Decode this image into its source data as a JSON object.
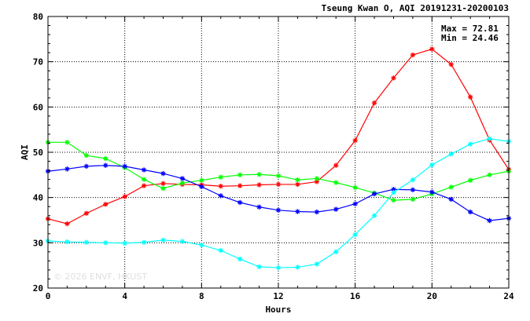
{
  "chart_data": {
    "type": "line",
    "title": "Tseung Kwan O, AQI 20191231-20200103",
    "xlabel": "Hours",
    "ylabel": "AQI",
    "xlim": [
      0,
      24
    ],
    "ylim": [
      20,
      80
    ],
    "xticks": [
      0,
      4,
      8,
      12,
      16,
      20,
      24
    ],
    "yticks": [
      20,
      30,
      40,
      50,
      60,
      70,
      80
    ],
    "grid": true,
    "stats": {
      "max": "Max = 72.81",
      "min": "Min = 24.46"
    },
    "watermark": "© 2026 ENVF, HKUST",
    "x": [
      0,
      1,
      2,
      3,
      4,
      5,
      6,
      7,
      8,
      9,
      10,
      11,
      12,
      13,
      14,
      15,
      16,
      17,
      18,
      19,
      20,
      21,
      22,
      23,
      24
    ],
    "series": [
      {
        "color": "#ff0000",
        "values": [
          35.3,
          34.2,
          36.5,
          38.5,
          40.2,
          42.6,
          43.1,
          42.9,
          42.8,
          42.5,
          42.6,
          42.8,
          42.9,
          42.9,
          43.5,
          47.1,
          52.6,
          60.9,
          66.4,
          71.5,
          72.8,
          69.4,
          62.2,
          52.7,
          46.2
        ]
      },
      {
        "color": "#00ff00",
        "values": [
          52.2,
          52.2,
          49.3,
          48.6,
          46.6,
          44.0,
          42.0,
          43.2,
          43.8,
          44.5,
          45.0,
          45.1,
          44.8,
          43.9,
          44.2,
          43.3,
          42.2,
          41.0,
          39.4,
          39.6,
          40.8,
          42.3,
          43.8,
          45.0,
          45.8
        ]
      },
      {
        "color": "#0000ff",
        "values": [
          45.8,
          46.3,
          46.9,
          47.1,
          46.9,
          46.1,
          45.3,
          44.2,
          42.4,
          40.4,
          38.9,
          37.9,
          37.2,
          36.9,
          36.8,
          37.4,
          38.6,
          40.8,
          41.8,
          41.7,
          41.2,
          39.6,
          36.8,
          34.9,
          35.4
        ]
      },
      {
        "color": "#00ffff",
        "values": [
          30.4,
          30.2,
          30.1,
          30.0,
          29.9,
          30.1,
          30.6,
          30.3,
          29.5,
          28.3,
          26.4,
          24.7,
          24.5,
          24.6,
          25.3,
          28.0,
          31.8,
          36.0,
          41.1,
          43.9,
          47.2,
          49.6,
          51.8,
          53.0,
          52.4
        ]
      }
    ]
  }
}
